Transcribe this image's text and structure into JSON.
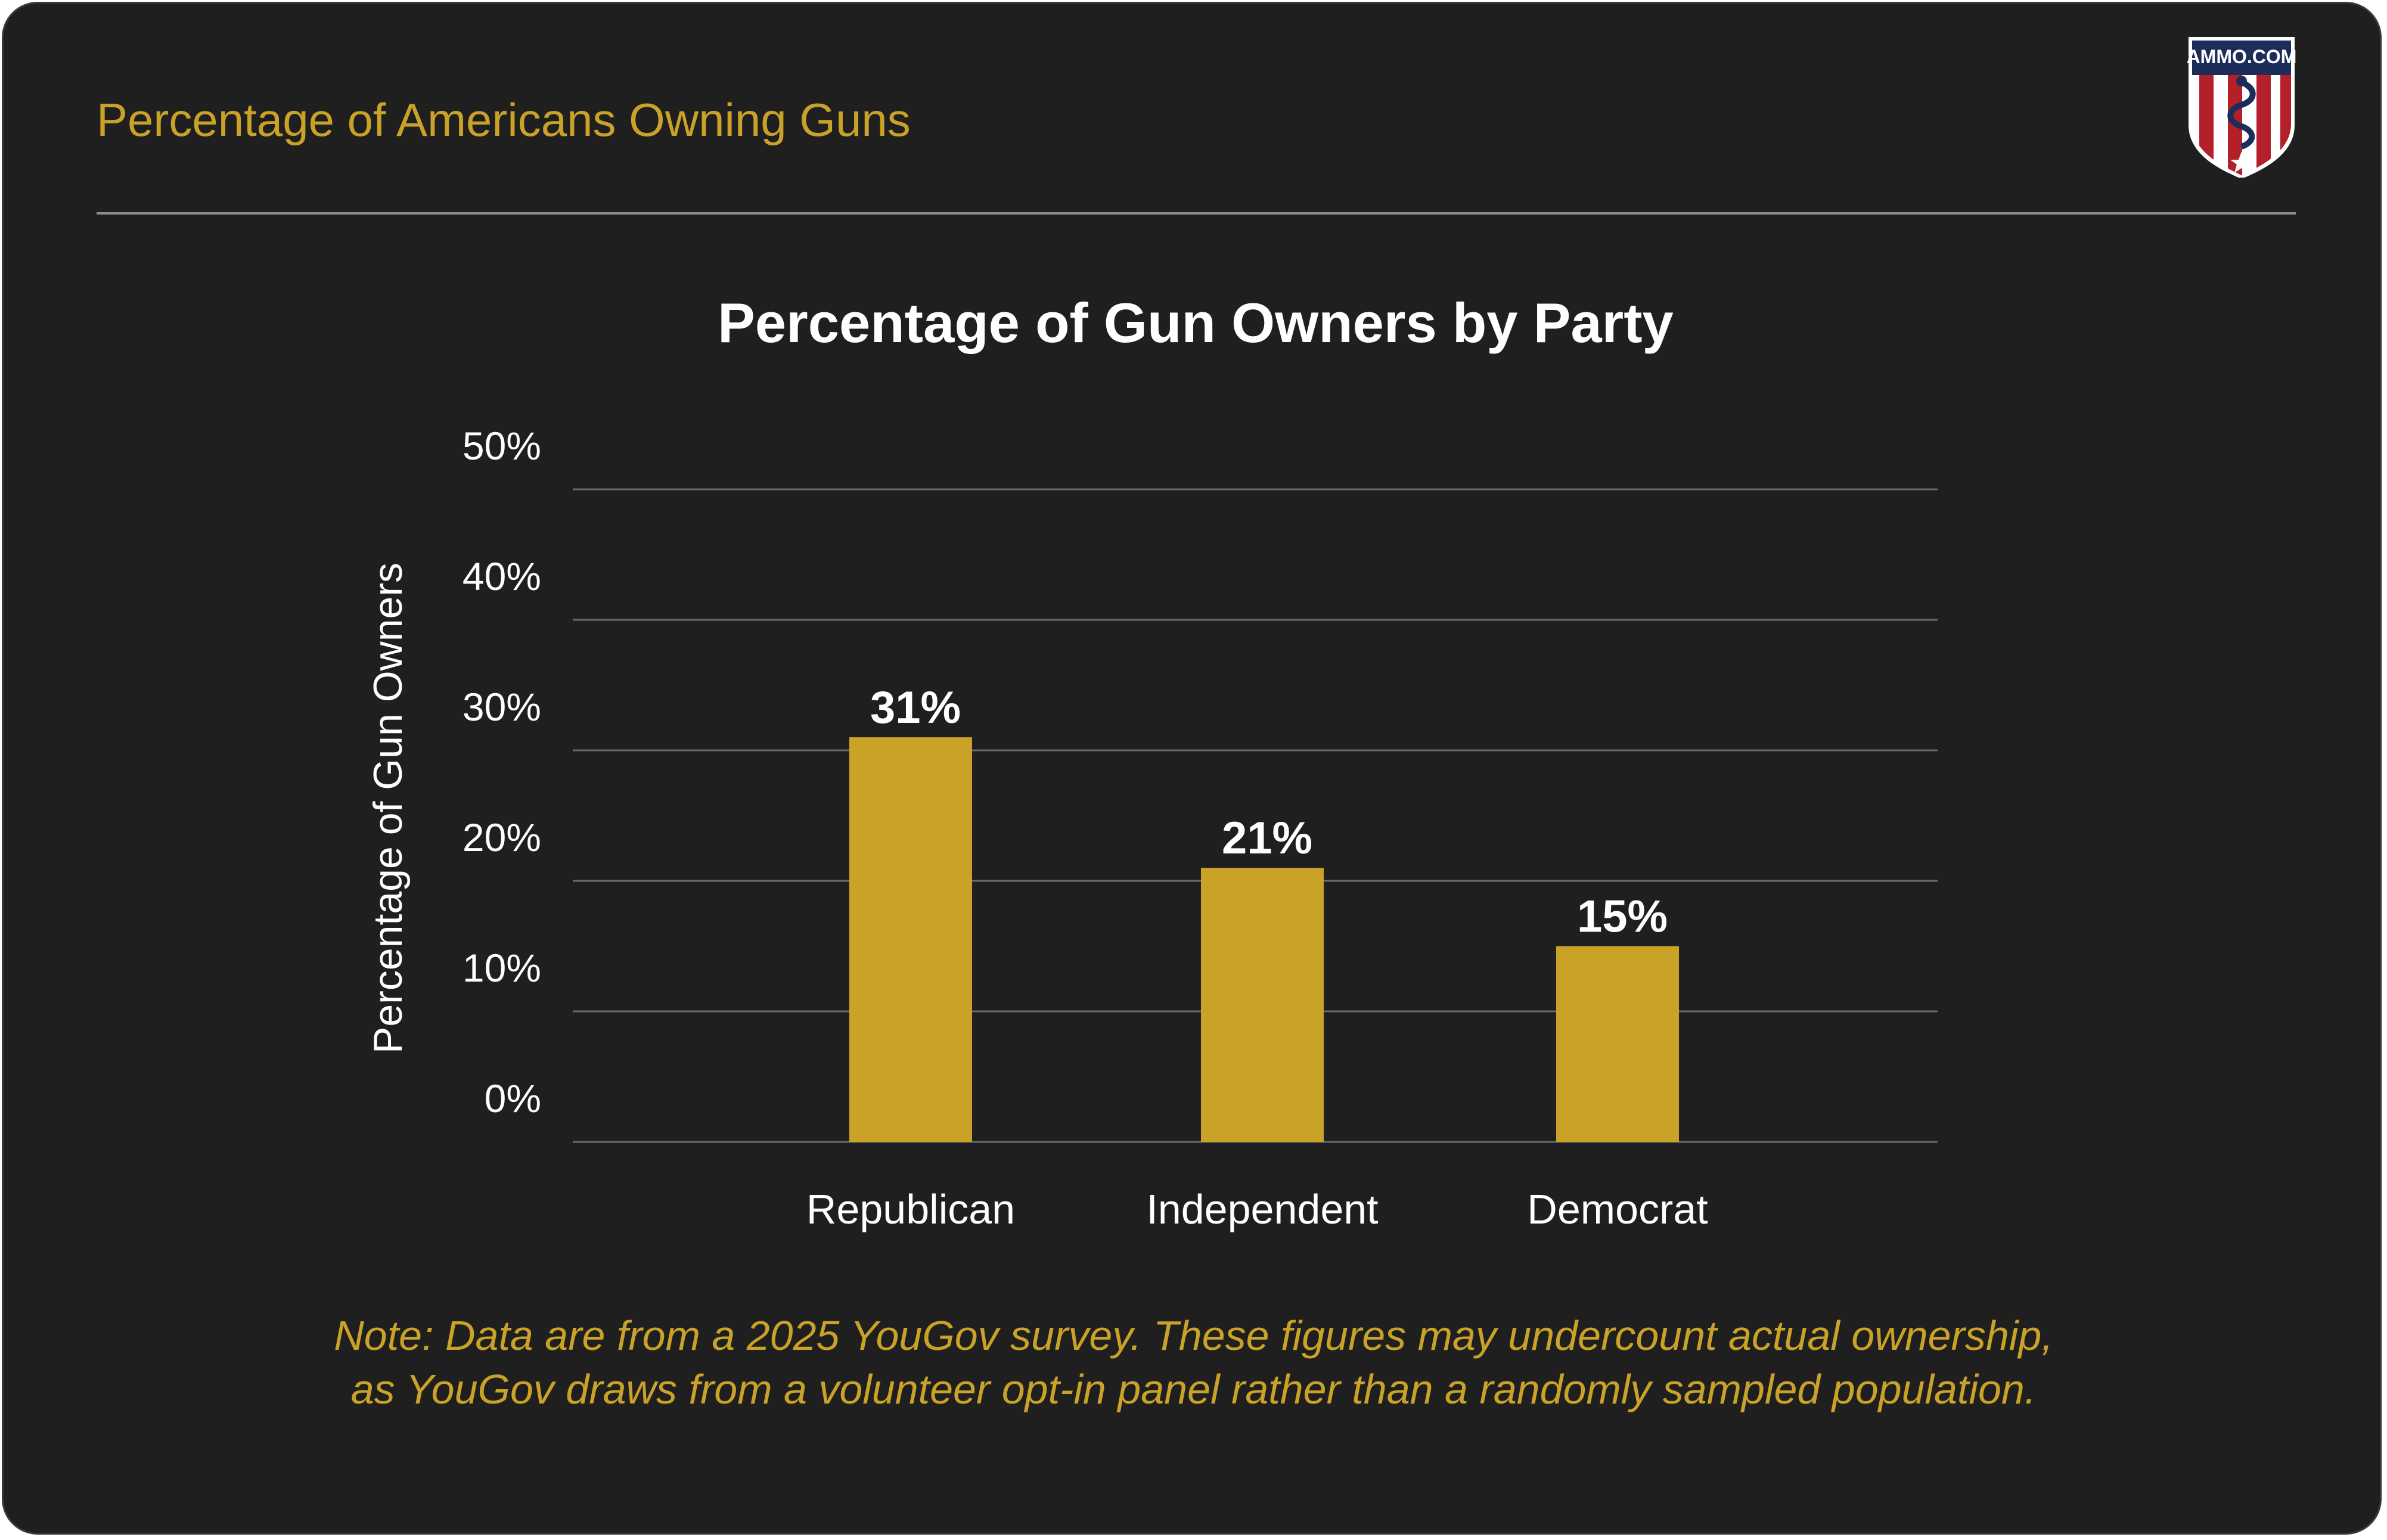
{
  "header": {
    "title": "Percentage of Americans Owning Guns",
    "logo_text": "AMMO.COM"
  },
  "chart_data": {
    "type": "bar",
    "title": "Percentage of Gun Owners by Party",
    "ylabel": "Percentage of Gun Owners",
    "xlabel": "",
    "categories": [
      "Republican",
      "Independent",
      "Democrat"
    ],
    "values": [
      31,
      21,
      15
    ],
    "data_labels": [
      "31%",
      "21%",
      "15%"
    ],
    "ylim": [
      0,
      50
    ],
    "yticks": [
      0,
      10,
      20,
      30,
      40,
      50
    ],
    "ytick_labels": [
      "0%",
      "10%",
      "20%",
      "30%",
      "40%",
      "50%"
    ],
    "grid": true,
    "legend": "none",
    "bar_color": "#c9a227",
    "background": "#1f1f1f"
  },
  "note": {
    "line1": "Note: Data are from a 2025 YouGov survey. These figures may undercount actual ownership,",
    "line2": "as YouGov draws from a volunteer opt-in panel rather than a randomly sampled population."
  },
  "colors": {
    "accent": "#c9a227",
    "text": "#ffffff",
    "grid": "#6a6a6a",
    "logo_red": "#b3202a",
    "logo_navy": "#1c2d5a"
  }
}
